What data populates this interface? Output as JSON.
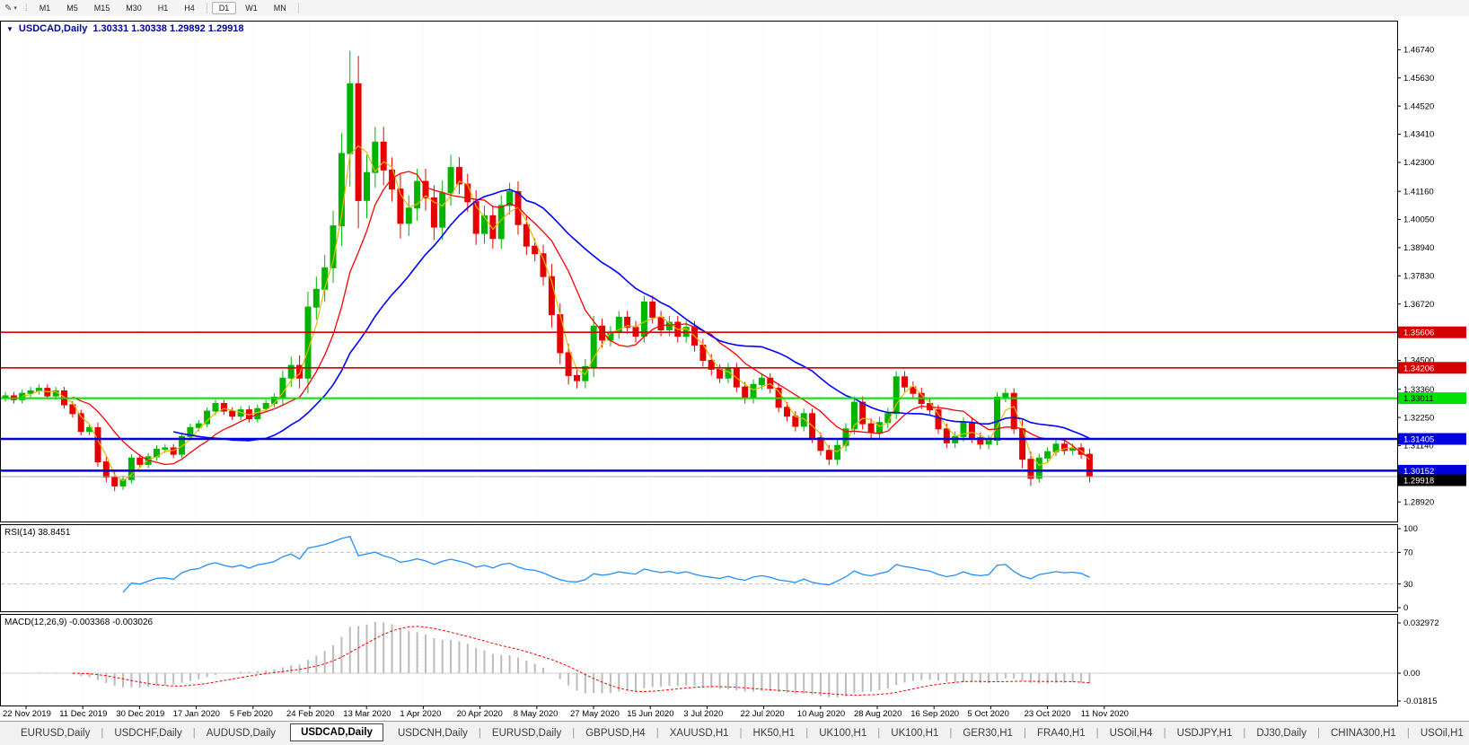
{
  "icons": {
    "tool": "✎",
    "caret": "▾",
    "grip": "⁞",
    "collapse": "▼",
    "tab_scroll_left": "◂",
    "tab_scroll_right": "▸",
    "tab_pipe": "|"
  },
  "toolbar": {
    "timeframes": [
      "M1",
      "M5",
      "M15",
      "M30",
      "H1",
      "H4",
      "D1",
      "W1",
      "MN"
    ],
    "active_timeframe": "D1"
  },
  "chart": {
    "title_symbol": "USDCAD,Daily",
    "title_ohlc": "1.30331 1.30338 1.29892 1.29918",
    "current": {
      "open": "1.30331",
      "high": "1.30338",
      "low": "1.29892",
      "close": "1.29918"
    }
  },
  "rsi": {
    "label": "RSI(14) 38.8451",
    "value": 38.8451,
    "period": 14,
    "axis_labels": [
      "100",
      "70",
      "30",
      "0"
    ],
    "levels": [
      70,
      30
    ]
  },
  "macd": {
    "label": "MACD(12,26,9) -0.003368 -0.003026",
    "main_value": "-0.003368",
    "signal_value": "-0.003026",
    "axis_top": "0.032972",
    "axis_zero": "0.00",
    "axis_bottom": "-0.01815"
  },
  "tabs": {
    "items": [
      "EURUSD,Daily",
      "USDCHF,Daily",
      "AUDUSD,Daily",
      "USDCAD,Daily",
      "USDCNH,Daily",
      "EURUSD,Daily",
      "GBPUSD,H4",
      "XAUUSD,H1",
      "HK50,H1",
      "UK100,H1",
      "UK100,H1",
      "GER30,H1",
      "FRA40,H1",
      "USOil,H4",
      "USDJPY,H1",
      "DJ30,Daily",
      "CHINA300,H1",
      "USOil,H1"
    ],
    "active_index": 3
  },
  "chart_data": {
    "type": "candlestick",
    "title": "USDCAD,Daily",
    "x_labels": [
      "22 Nov 2019",
      "11 Dec 2019",
      "30 Dec 2019",
      "17 Jan 2020",
      "5 Feb 2020",
      "24 Feb 2020",
      "13 Mar 2020",
      "1 Apr 2020",
      "20 Apr 2020",
      "8 May 2020",
      "27 May 2020",
      "15 Jun 2020",
      "3 Jul 2020",
      "22 Jul 2020",
      "10 Aug 2020",
      "28 Aug 2020",
      "16 Sep 2020",
      "5 Oct 2020",
      "23 Oct 2020",
      "11 Nov 2020"
    ],
    "y_ticks": [
      "1.46740",
      "1.45630",
      "1.44520",
      "1.43410",
      "1.42300",
      "1.41160",
      "1.40050",
      "1.38940",
      "1.37830",
      "1.36720",
      "1.34500",
      "1.33360",
      "1.32250",
      "1.31140",
      "1.28920"
    ],
    "price_top": 1.4785,
    "price_bottom": 1.2815,
    "closes": [
      1.331,
      1.3295,
      1.332,
      1.333,
      1.334,
      1.331,
      1.333,
      1.3275,
      1.324,
      1.317,
      1.3185,
      1.305,
      1.299,
      1.2955,
      1.298,
      1.3065,
      1.304,
      1.307,
      1.31,
      1.3105,
      1.308,
      1.315,
      1.3185,
      1.32,
      1.325,
      1.328,
      1.325,
      1.323,
      1.3255,
      1.322,
      1.326,
      1.328,
      1.3305,
      1.338,
      1.343,
      1.338,
      1.366,
      1.373,
      1.3815,
      1.398,
      1.4265,
      1.454,
      1.408,
      1.419,
      1.431,
      1.42,
      1.4125,
      1.399,
      1.405,
      1.4155,
      1.409,
      1.3975,
      1.411,
      1.421,
      1.4145,
      1.4075,
      1.395,
      1.402,
      1.393,
      1.406,
      1.4115,
      1.3985,
      1.39,
      1.387,
      1.378,
      1.363,
      1.348,
      1.339,
      1.337,
      1.3425,
      1.3585,
      1.353,
      1.356,
      1.362,
      1.358,
      1.3545,
      1.368,
      1.362,
      1.357,
      1.36,
      1.3545,
      1.358,
      1.351,
      1.345,
      1.3415,
      1.338,
      1.342,
      1.3345,
      1.33,
      1.3355,
      1.338,
      1.334,
      1.3265,
      1.323,
      1.319,
      1.324,
      1.3145,
      1.3095,
      1.306,
      1.3115,
      1.318,
      1.3285,
      1.32,
      1.3165,
      1.3205,
      1.324,
      1.3385,
      1.3345,
      1.332,
      1.328,
      1.3255,
      1.318,
      1.3125,
      1.315,
      1.3205,
      1.3145,
      1.312,
      1.3135,
      1.3305,
      1.332,
      1.318,
      1.306,
      1.2985,
      1.3065,
      1.309,
      1.312,
      1.3095,
      1.3105,
      1.308,
      1.2992
    ],
    "wicks": [
      0.003,
      0.003,
      0.003,
      0.003,
      0.003,
      0.003,
      0.003,
      0.003,
      0.003,
      0.003,
      0.003,
      0.004,
      0.004,
      0.004,
      0.003,
      0.003,
      0.003,
      0.003,
      0.003,
      0.003,
      0.003,
      0.003,
      0.003,
      0.003,
      0.003,
      0.003,
      0.003,
      0.003,
      0.003,
      0.003,
      0.003,
      0.003,
      0.003,
      0.006,
      0.007,
      0.008,
      0.012,
      0.01,
      0.01,
      0.012,
      0.016,
      0.026,
      0.022,
      0.014,
      0.012,
      0.012,
      0.01,
      0.012,
      0.01,
      0.01,
      0.01,
      0.01,
      0.01,
      0.01,
      0.008,
      0.008,
      0.009,
      0.008,
      0.008,
      0.008,
      0.007,
      0.008,
      0.007,
      0.006,
      0.007,
      0.01,
      0.009,
      0.007,
      0.006,
      0.006,
      0.008,
      0.006,
      0.005,
      0.005,
      0.005,
      0.005,
      0.005,
      0.005,
      0.005,
      0.005,
      0.005,
      0.005,
      0.005,
      0.005,
      0.005,
      0.004,
      0.004,
      0.004,
      0.004,
      0.004,
      0.004,
      0.004,
      0.004,
      0.004,
      0.004,
      0.004,
      0.004,
      0.004,
      0.0045,
      0.0045,
      0.0045,
      0.0045,
      0.0045,
      0.0045,
      0.0045,
      0.0045,
      0.0045,
      0.0045,
      0.0045,
      0.0045,
      0.0045,
      0.004,
      0.004,
      0.004,
      0.004,
      0.004,
      0.004,
      0.004,
      0.004,
      0.004,
      0.004,
      0.007,
      0.006,
      0.0035,
      0.0035,
      0.0035,
      0.0035,
      0.0035,
      0.0035,
      0.0045
    ],
    "hlines": [
      {
        "price": 1.35606,
        "label": "1.35606",
        "color": "#D40000",
        "badge_bg": "#D40000",
        "badge_fg": "#FFFFFF",
        "w": 1.6
      },
      {
        "price": 1.34206,
        "label": "1.34206",
        "color": "#D40000",
        "badge_bg": "#D40000",
        "badge_fg": "#FFFFFF",
        "w": 1.6
      },
      {
        "price": 1.33011,
        "label": "1.33011",
        "color": "#00E100",
        "badge_bg": "#00E100",
        "badge_fg": "#000000",
        "w": 2
      },
      {
        "price": 1.31405,
        "label": "1.31405",
        "color": "#0000DC",
        "badge_bg": "#0000DC",
        "badge_fg": "#FFFFFF",
        "w": 2.5
      },
      {
        "price": 1.30152,
        "label": "1.30152",
        "color": "#0000DC",
        "badge_bg": "#0000DC",
        "badge_fg": "#FFFFFF",
        "w": 2.5
      },
      {
        "price": 1.29918,
        "label": "1.29918",
        "color": "#A8A8A8",
        "badge_bg": "#000000",
        "badge_fg": "#FFFFFF",
        "w": 1
      }
    ],
    "colors": {
      "up": "#00B400",
      "down": "#E60000",
      "ma_fast": "#E8B800",
      "ma_mid": "#FF0000",
      "ma_slow": "#0000FF",
      "rsi": "#1E90FF",
      "macd_hist": "#BBBBBB",
      "macd_signal": "#FF0000",
      "grid": "#E3E3E3",
      "level_dash": "#BDBDBD"
    },
    "ma_periods": {
      "fast": 3,
      "mid": 9,
      "slow": 21
    }
  }
}
